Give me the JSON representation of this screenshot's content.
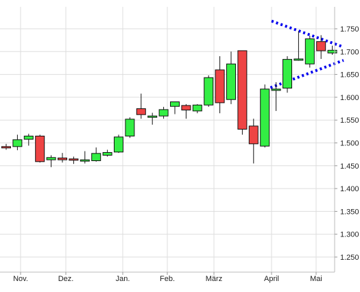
{
  "chart_data": {
    "type": "candlestick",
    "title": "",
    "xlabel": "",
    "ylabel": "",
    "ylim": [
      1.2,
      1.8
    ],
    "y_ticks": [
      1.25,
      1.3,
      1.35,
      1.4,
      1.45,
      1.5,
      1.55,
      1.6,
      1.65,
      1.7,
      1.75
    ],
    "y_tick_labels": [
      "1.250",
      "1.300",
      "1.350",
      "1.400",
      "1.450",
      "1.500",
      "1.550",
      "1.600",
      "1.650",
      "1.700",
      "1.750"
    ],
    "x_tick_labels": [
      "Nov.",
      "Dez.",
      "Jan.",
      "Feb.",
      "März",
      "April",
      "Mai"
    ],
    "grid": true,
    "colors": {
      "up": "#33ee44",
      "down": "#ee4444",
      "trendline": "#0000ee",
      "grid": "#dddddd"
    },
    "candles": [
      {
        "open": 1.492,
        "high": 1.498,
        "low": 1.485,
        "close": 1.49
      },
      {
        "open": 1.492,
        "high": 1.518,
        "low": 1.484,
        "close": 1.507
      },
      {
        "open": 1.508,
        "high": 1.52,
        "low": 1.494,
        "close": 1.515
      },
      {
        "open": 1.515,
        "high": 1.518,
        "low": 1.457,
        "close": 1.459
      },
      {
        "open": 1.463,
        "high": 1.473,
        "low": 1.447,
        "close": 1.468
      },
      {
        "open": 1.467,
        "high": 1.478,
        "low": 1.457,
        "close": 1.463
      },
      {
        "open": 1.465,
        "high": 1.47,
        "low": 1.454,
        "close": 1.462
      },
      {
        "open": 1.46,
        "high": 1.482,
        "low": 1.455,
        "close": 1.463
      },
      {
        "open": 1.461,
        "high": 1.49,
        "low": 1.459,
        "close": 1.477
      },
      {
        "open": 1.473,
        "high": 1.485,
        "low": 1.47,
        "close": 1.479
      },
      {
        "open": 1.48,
        "high": 1.518,
        "low": 1.478,
        "close": 1.513
      },
      {
        "open": 1.515,
        "high": 1.556,
        "low": 1.511,
        "close": 1.552
      },
      {
        "open": 1.575,
        "high": 1.608,
        "low": 1.553,
        "close": 1.562
      },
      {
        "open": 1.558,
        "high": 1.566,
        "low": 1.54,
        "close": 1.559
      },
      {
        "open": 1.559,
        "high": 1.579,
        "low": 1.553,
        "close": 1.573
      },
      {
        "open": 1.58,
        "high": 1.59,
        "low": 1.563,
        "close": 1.59
      },
      {
        "open": 1.582,
        "high": 1.585,
        "low": 1.553,
        "close": 1.572
      },
      {
        "open": 1.57,
        "high": 1.585,
        "low": 1.565,
        "close": 1.583
      },
      {
        "open": 1.583,
        "high": 1.648,
        "low": 1.579,
        "close": 1.643
      },
      {
        "open": 1.66,
        "high": 1.69,
        "low": 1.565,
        "close": 1.588
      },
      {
        "open": 1.595,
        "high": 1.7,
        "low": 1.585,
        "close": 1.673
      },
      {
        "open": 1.702,
        "high": 1.702,
        "low": 1.518,
        "close": 1.53
      },
      {
        "open": 1.537,
        "high": 1.553,
        "low": 1.455,
        "close": 1.498
      },
      {
        "open": 1.493,
        "high": 1.628,
        "low": 1.49,
        "close": 1.618
      },
      {
        "open": 1.616,
        "high": 1.633,
        "low": 1.57,
        "close": 1.618
      },
      {
        "open": 1.62,
        "high": 1.69,
        "low": 1.61,
        "close": 1.683
      },
      {
        "open": 1.683,
        "high": 1.745,
        "low": 1.68,
        "close": 1.684
      },
      {
        "open": 1.673,
        "high": 1.735,
        "low": 1.665,
        "close": 1.728
      },
      {
        "open": 1.722,
        "high": 1.736,
        "low": 1.684,
        "close": 1.702
      },
      {
        "open": 1.697,
        "high": 1.713,
        "low": 1.693,
        "close": 1.703
      }
    ],
    "trendlines": [
      {
        "from": {
          "candle": 23.5,
          "y": 1.621
        },
        "to": {
          "candle": 30,
          "y": 1.681
        }
      },
      {
        "from": {
          "candle": 23.6,
          "y": 1.767
        },
        "to": {
          "candle": 30,
          "y": 1.71
        }
      }
    ]
  }
}
